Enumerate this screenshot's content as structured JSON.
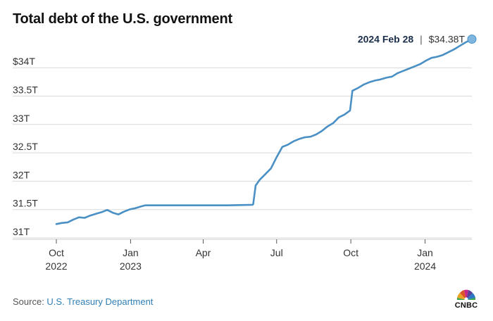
{
  "header": {
    "title": "Total debt of the U.S. government"
  },
  "footer": {
    "source_label": "Source: ",
    "source_name": "U.S. Treasury Department",
    "logo_text": "CNBC"
  },
  "colors": {
    "line": "#4a90c4",
    "grid": "#d9d9d9",
    "axis_text": "#333333",
    "marker": "#7fb6e0",
    "callout_bold": "#1b2e4a"
  },
  "chart_data": {
    "type": "line",
    "title": "Total debt of the U.S. government",
    "xlabel": "",
    "ylabel": "",
    "ylim": [
      31,
      34.38
    ],
    "xlim": [
      "2022-10-01",
      "2024-02-28"
    ],
    "grid": true,
    "y_ticks": [
      {
        "value": 31,
        "label": "31T"
      },
      {
        "value": 31.5,
        "label": "31.5T"
      },
      {
        "value": 32,
        "label": "32T"
      },
      {
        "value": 32.5,
        "label": "32.5T"
      },
      {
        "value": 33,
        "label": "33T"
      },
      {
        "value": 33.5,
        "label": "33.5T"
      },
      {
        "value": 34,
        "label": "$34T"
      }
    ],
    "x_ticks": [
      {
        "date": "2022-10-01",
        "label": "Oct",
        "sublabel": "2022"
      },
      {
        "date": "2023-01-01",
        "label": "Jan",
        "sublabel": "2023"
      },
      {
        "date": "2023-04-01",
        "label": "Apr",
        "sublabel": ""
      },
      {
        "date": "2023-07-01",
        "label": "Jul",
        "sublabel": ""
      },
      {
        "date": "2023-10-01",
        "label": "Oct",
        "sublabel": ""
      },
      {
        "date": "2024-01-01",
        "label": "Jan",
        "sublabel": "2024"
      }
    ],
    "callout": {
      "date_label": "2024 Feb 28",
      "value_label": "$34.38T",
      "separator": "|"
    },
    "series": [
      {
        "name": "",
        "points": [
          [
            "2022-10-01",
            31.12
          ],
          [
            "2022-10-08",
            31.14
          ],
          [
            "2022-10-15",
            31.15
          ],
          [
            "2022-10-22",
            31.2
          ],
          [
            "2022-10-29",
            31.24
          ],
          [
            "2022-11-05",
            31.23
          ],
          [
            "2022-11-12",
            31.27
          ],
          [
            "2022-11-19",
            31.3
          ],
          [
            "2022-11-26",
            31.33
          ],
          [
            "2022-12-03",
            31.37
          ],
          [
            "2022-12-10",
            31.32
          ],
          [
            "2022-12-17",
            31.29
          ],
          [
            "2022-12-24",
            31.34
          ],
          [
            "2022-12-31",
            31.38
          ],
          [
            "2023-01-07",
            31.4
          ],
          [
            "2023-01-14",
            31.43
          ],
          [
            "2023-01-19",
            31.45
          ],
          [
            "2023-02-01",
            31.45
          ],
          [
            "2023-03-01",
            31.45
          ],
          [
            "2023-04-01",
            31.45
          ],
          [
            "2023-05-01",
            31.45
          ],
          [
            "2023-06-01",
            31.46
          ],
          [
            "2023-06-02",
            31.47
          ],
          [
            "2023-06-05",
            31.8
          ],
          [
            "2023-06-10",
            31.9
          ],
          [
            "2023-06-17",
            32.0
          ],
          [
            "2023-06-24",
            32.1
          ],
          [
            "2023-07-01",
            32.3
          ],
          [
            "2023-07-08",
            32.48
          ],
          [
            "2023-07-15",
            32.52
          ],
          [
            "2023-07-22",
            32.58
          ],
          [
            "2023-07-29",
            32.62
          ],
          [
            "2023-08-05",
            32.65
          ],
          [
            "2023-08-12",
            32.66
          ],
          [
            "2023-08-19",
            32.7
          ],
          [
            "2023-08-26",
            32.76
          ],
          [
            "2023-09-02",
            32.84
          ],
          [
            "2023-09-09",
            32.9
          ],
          [
            "2023-09-16",
            33.0
          ],
          [
            "2023-09-23",
            33.05
          ],
          [
            "2023-09-30",
            33.12
          ],
          [
            "2023-10-03",
            33.47
          ],
          [
            "2023-10-10",
            33.52
          ],
          [
            "2023-10-17",
            33.58
          ],
          [
            "2023-10-24",
            33.62
          ],
          [
            "2023-10-31",
            33.65
          ],
          [
            "2023-11-07",
            33.67
          ],
          [
            "2023-11-14",
            33.7
          ],
          [
            "2023-11-21",
            33.72
          ],
          [
            "2023-11-28",
            33.78
          ],
          [
            "2023-12-05",
            33.82
          ],
          [
            "2023-12-12",
            33.86
          ],
          [
            "2023-12-19",
            33.9
          ],
          [
            "2023-12-26",
            33.94
          ],
          [
            "2024-01-02",
            34.0
          ],
          [
            "2024-01-09",
            34.05
          ],
          [
            "2024-01-16",
            34.07
          ],
          [
            "2024-01-23",
            34.1
          ],
          [
            "2024-01-30",
            34.15
          ],
          [
            "2024-02-06",
            34.2
          ],
          [
            "2024-02-13",
            34.26
          ],
          [
            "2024-02-20",
            34.32
          ],
          [
            "2024-02-28",
            34.38
          ]
        ]
      }
    ]
  }
}
